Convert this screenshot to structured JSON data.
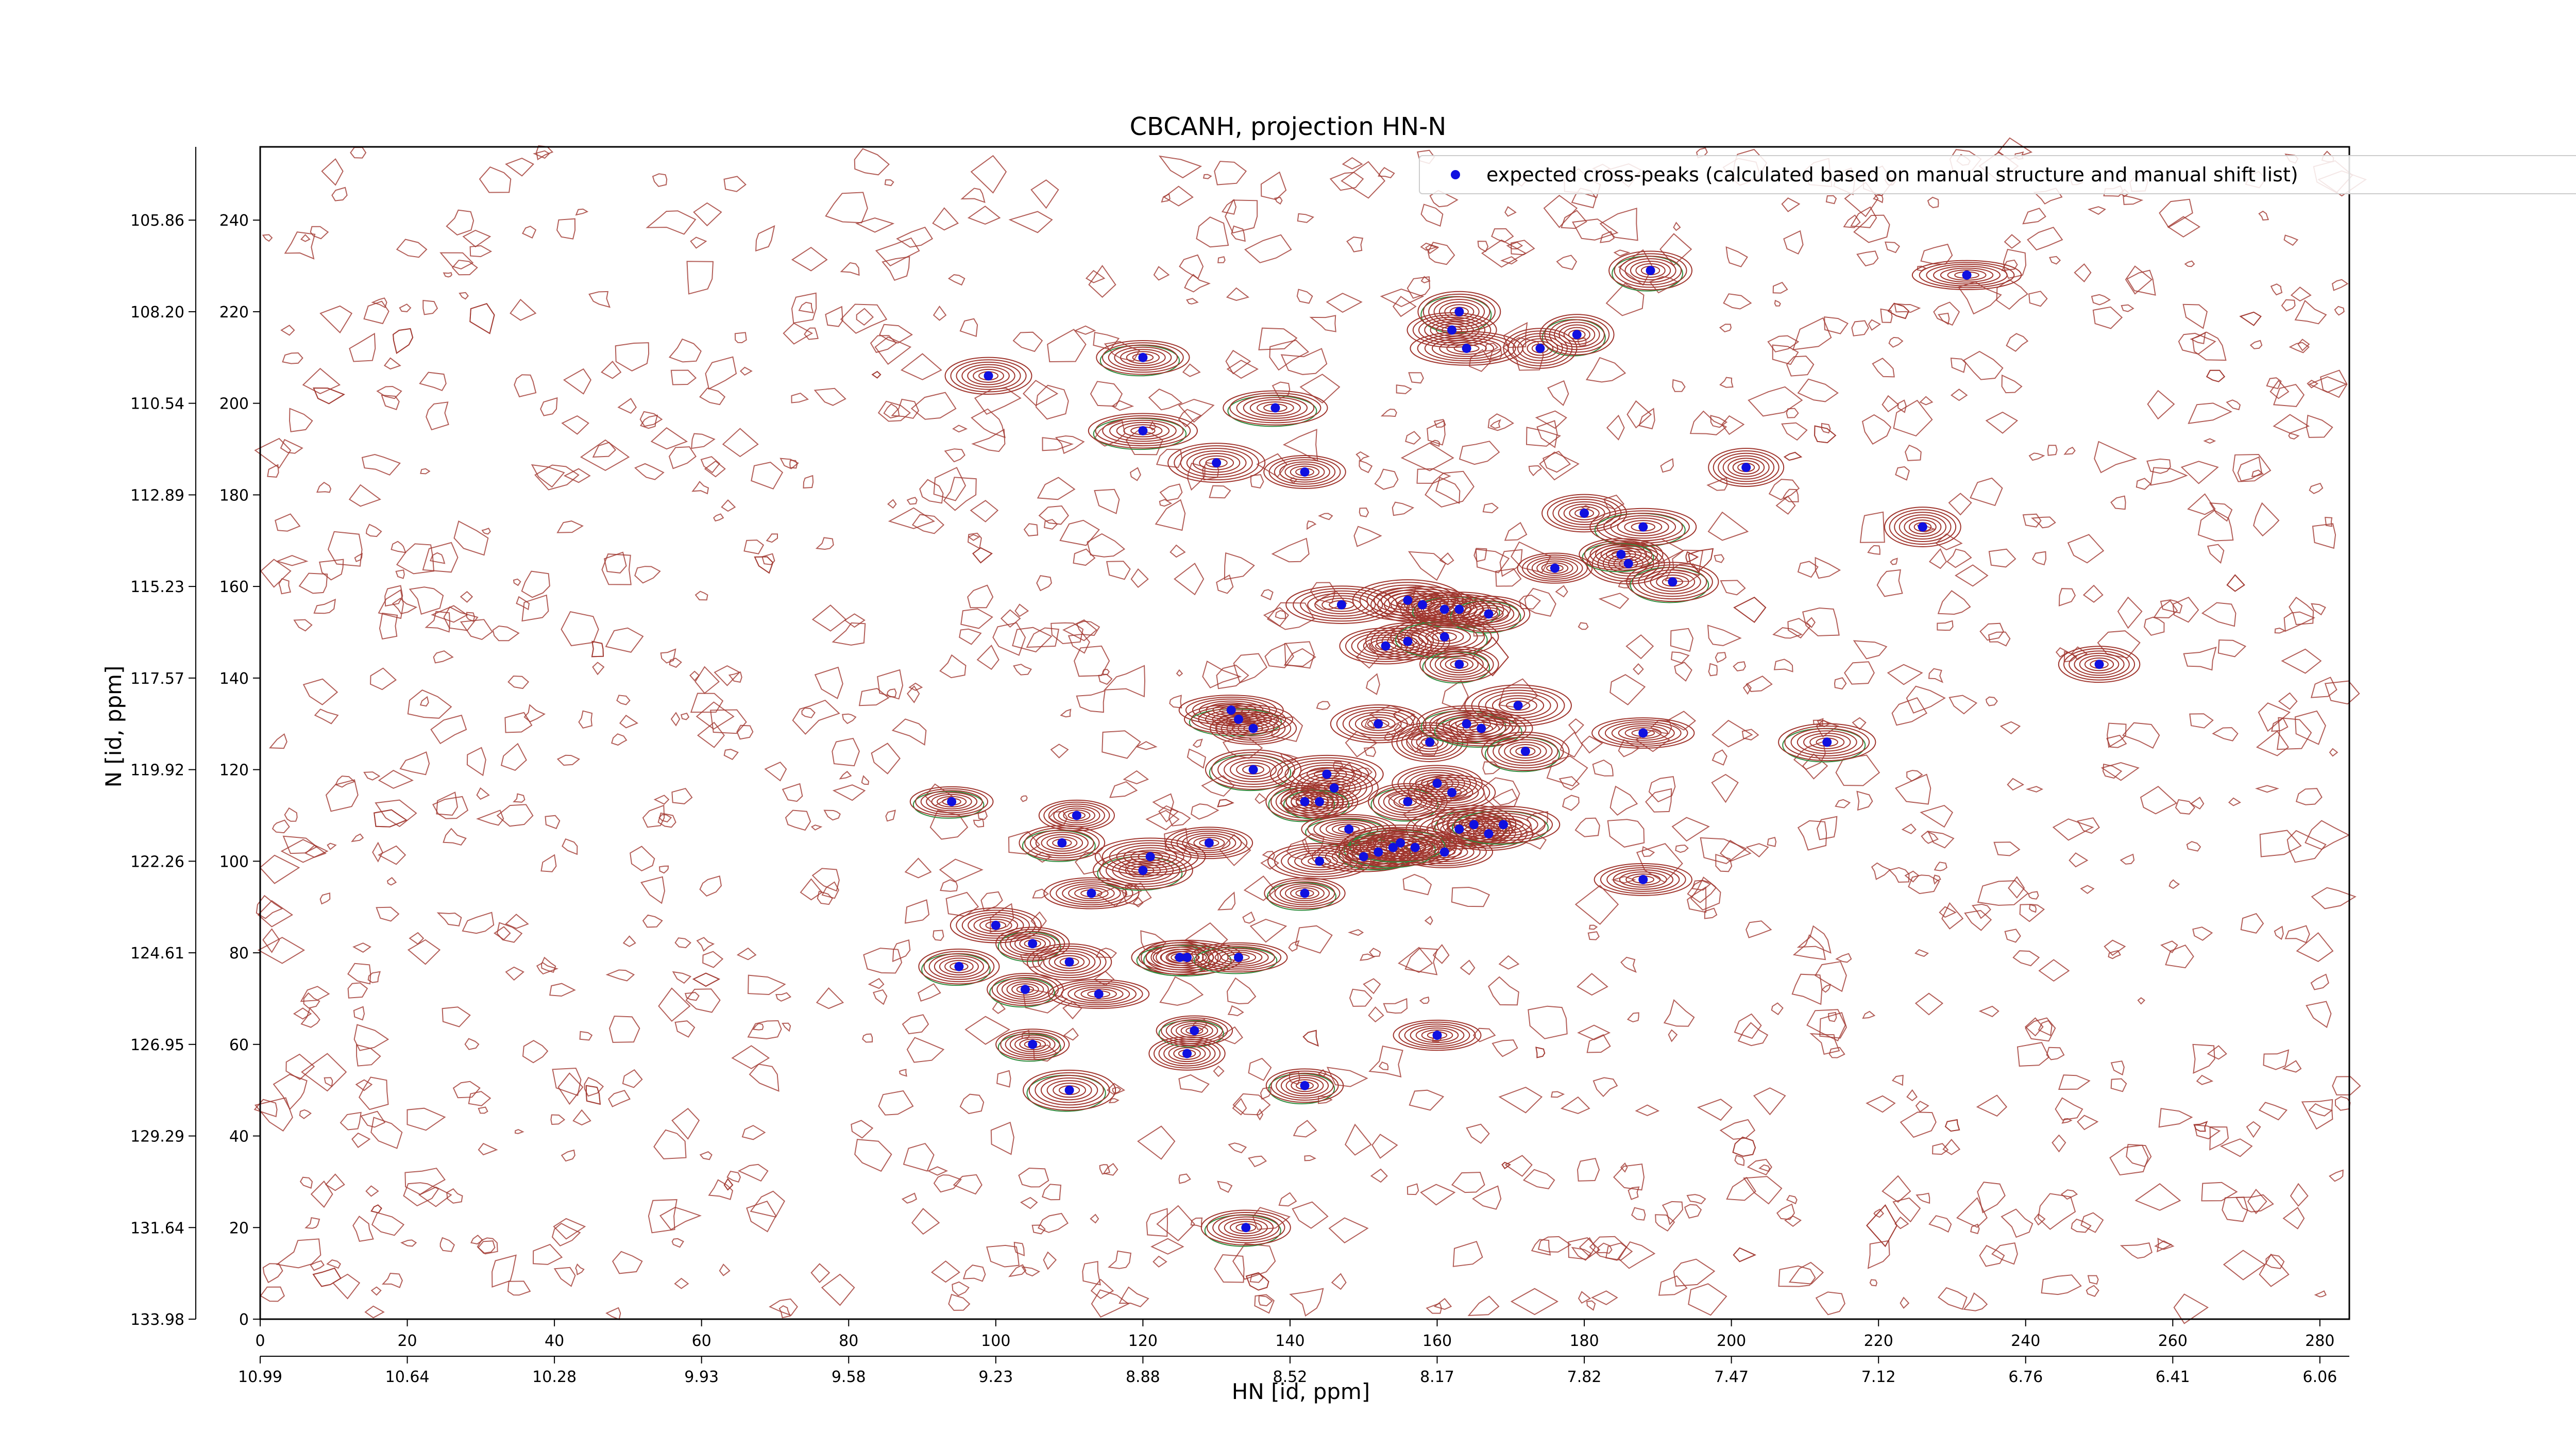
{
  "chart_data": {
    "type": "scatter",
    "title": "CBCANH, projection HN-N",
    "xlabel": "HN [id, ppm]",
    "ylabel": "N [id, ppm]",
    "xlim": [
      0,
      284
    ],
    "ylim": [
      0,
      256
    ],
    "x_index_ticks": [
      0,
      20,
      40,
      60,
      80,
      100,
      120,
      140,
      160,
      180,
      200,
      220,
      240,
      260,
      280
    ],
    "y_index_ticks": [
      0,
      20,
      40,
      60,
      80,
      100,
      120,
      140,
      160,
      180,
      200,
      220,
      240
    ],
    "x_ppm_tick_labels": [
      "10.99",
      "10.64",
      "10.28",
      "9.93",
      "9.58",
      "9.23",
      "8.88",
      "8.52",
      "8.17",
      "7.82",
      "7.47",
      "7.12",
      "6.76",
      "6.41",
      "6.06"
    ],
    "y_ppm_tick_labels": [
      "133.98",
      "131.64",
      "129.29",
      "126.95",
      "124.61",
      "122.26",
      "119.92",
      "117.57",
      "115.23",
      "112.89",
      "110.54",
      "108.20",
      "105.86"
    ],
    "legend": {
      "position": "top-right",
      "label": "expected cross-peaks (calculated based on manual structure and manual shift list)"
    },
    "colors": {
      "positive_contour": "#a0362e",
      "negative_contour": "#2e8b3d",
      "marker": "#1010e0"
    },
    "series": [
      {
        "name": "expected cross-peaks (calculated based on manual structure and manual shift list)",
        "x": [
          99,
          120,
          120,
          130,
          138,
          142,
          163,
          162,
          164,
          179,
          174,
          189,
          232,
          202,
          180,
          188,
          186,
          185,
          192,
          176,
          226,
          147,
          156,
          158,
          161,
          163,
          167,
          153,
          156,
          161,
          163,
          250,
          132,
          133,
          135,
          152,
          159,
          164,
          166,
          171,
          172,
          188,
          213,
          135,
          145,
          146,
          142,
          144,
          156,
          160,
          162,
          165,
          163,
          157,
          161,
          167,
          169,
          148,
          150,
          152,
          154,
          155,
          144,
          142,
          94,
          111,
          109,
          113,
          120,
          121,
          129,
          100,
          95,
          105,
          110,
          114,
          125,
          126,
          133,
          127,
          126,
          142,
          104,
          105,
          110,
          134,
          160,
          188
        ],
        "y": [
          206,
          210,
          194,
          187,
          199,
          185,
          220,
          216,
          212,
          215,
          212,
          229,
          228,
          186,
          176,
          173,
          165,
          167,
          161,
          164,
          173,
          156,
          157,
          156,
          155,
          155,
          154,
          147,
          148,
          149,
          143,
          143,
          133,
          131,
          129,
          130,
          126,
          130,
          129,
          134,
          124,
          128,
          126,
          120,
          119,
          116,
          113,
          113,
          113,
          117,
          115,
          108,
          107,
          103,
          102,
          106,
          108,
          107,
          101,
          102,
          103,
          104,
          100,
          93,
          113,
          110,
          104,
          93,
          98,
          101,
          104,
          86,
          77,
          82,
          78,
          71,
          79,
          79,
          79,
          63,
          58,
          51,
          72,
          60,
          50,
          20,
          62,
          96
        ]
      }
    ]
  }
}
